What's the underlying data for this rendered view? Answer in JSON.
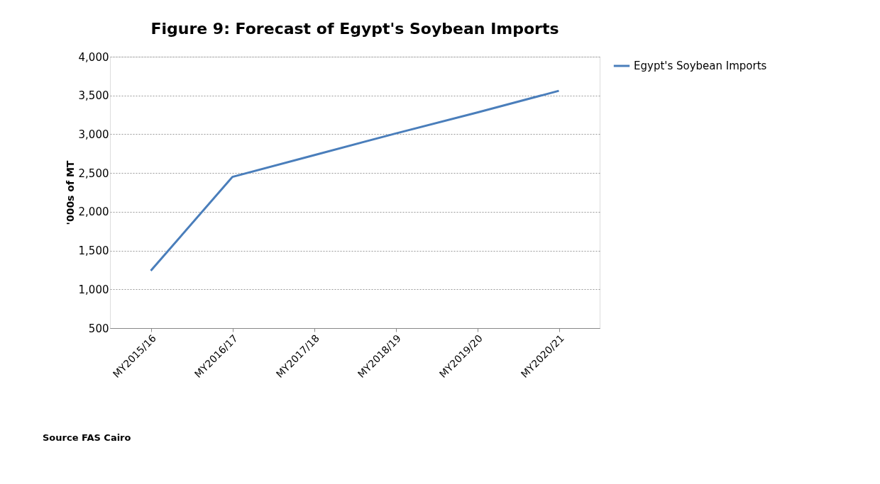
{
  "chart_data": {
    "type": "line",
    "title": "Figure 9: Forecast of Egypt's Soybean Imports",
    "ylabel": "'000s of MT",
    "categories": [
      "MY2015/16",
      "MY2016/17",
      "MY2017/18",
      "MY2018/19",
      "MY2019/20",
      "MY2020/21"
    ],
    "series": [
      {
        "name": "Egypt's Soybean Imports",
        "color": "#4a7ebb",
        "values": [
          1240,
          2450,
          2730,
          3010,
          3280,
          3560
        ]
      }
    ],
    "ylim": [
      500,
      4000
    ],
    "yticks": [
      {
        "value": 500,
        "label": "500"
      },
      {
        "value": 1000,
        "label": "1,000"
      },
      {
        "value": 1500,
        "label": "1,500"
      },
      {
        "value": 2000,
        "label": "2,000"
      },
      {
        "value": 2500,
        "label": "2,500"
      },
      {
        "value": 3000,
        "label": "3,000"
      },
      {
        "value": 3500,
        "label": "3,500"
      },
      {
        "value": 4000,
        "label": "4,000"
      }
    ],
    "grid": "y",
    "legend": "right",
    "marker": "none",
    "line_style": "solid",
    "annotations": [
      "Source FAS Cairo"
    ]
  }
}
